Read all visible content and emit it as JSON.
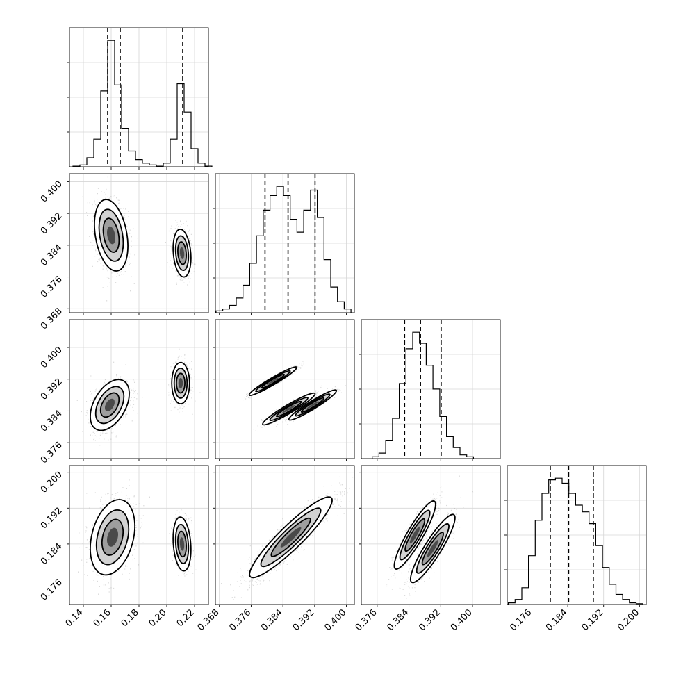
{
  "chart_data": {
    "type": "corner",
    "title": "",
    "grid": true,
    "parameters": [
      {
        "xlim": [
          0.13,
          0.23
        ],
        "ticks": [
          0.14,
          0.16,
          0.18,
          0.2,
          0.22
        ],
        "tick_labels": [
          "0.14",
          "0.16",
          "0.18",
          "0.20",
          "0.22"
        ]
      },
      {
        "xlim": [
          0.367,
          0.402
        ],
        "ticks": [
          0.368,
          0.376,
          0.384,
          0.392,
          0.4
        ],
        "tick_labels": [
          "0.368",
          "0.376",
          "0.384",
          "0.392",
          "0.400"
        ]
      },
      {
        "xlim": [
          0.372,
          0.407
        ],
        "ticks": [
          0.376,
          0.384,
          0.392,
          0.4
        ],
        "tick_labels": [
          "0.376",
          "0.384",
          "0.392",
          "0.400"
        ]
      },
      {
        "xlim": [
          0.1705,
          0.2015
        ],
        "ticks": [
          0.176,
          0.184,
          0.192,
          0.2
        ],
        "tick_labels": [
          "0.176",
          "0.184",
          "0.192",
          "0.200"
        ]
      }
    ],
    "histograms": [
      {
        "quantiles": [
          0.1575,
          0.1665,
          0.2115
        ],
        "peak": 21,
        "bins": [
          {
            "x": 0.135,
            "c": 0.1
          },
          {
            "x": 0.14,
            "c": 0.3
          },
          {
            "x": 0.145,
            "c": 1.5
          },
          {
            "x": 0.15,
            "c": 4.6
          },
          {
            "x": 0.155,
            "c": 12.6
          },
          {
            "x": 0.16,
            "c": 21.0
          },
          {
            "x": 0.165,
            "c": 13.6
          },
          {
            "x": 0.17,
            "c": 6.4
          },
          {
            "x": 0.175,
            "c": 2.6
          },
          {
            "x": 0.18,
            "c": 1.2
          },
          {
            "x": 0.185,
            "c": 0.6
          },
          {
            "x": 0.19,
            "c": 0.3
          },
          {
            "x": 0.195,
            "c": 0.1
          },
          {
            "x": 0.2,
            "c": 0.6
          },
          {
            "x": 0.205,
            "c": 4.6
          },
          {
            "x": 0.21,
            "c": 13.8
          },
          {
            "x": 0.215,
            "c": 9.1
          },
          {
            "x": 0.22,
            "c": 3.0
          },
          {
            "x": 0.225,
            "c": 0.6
          },
          {
            "x": 0.23,
            "c": 0.1
          }
        ]
      },
      {
        "quantiles": [
          0.3795,
          0.3853,
          0.3921
        ],
        "peak": 6.9,
        "bins": [
          {
            "x": 0.368,
            "c": 0.1
          },
          {
            "x": 0.3697,
            "c": 0.2
          },
          {
            "x": 0.3714,
            "c": 0.4
          },
          {
            "x": 0.3731,
            "c": 0.8
          },
          {
            "x": 0.3748,
            "c": 1.5
          },
          {
            "x": 0.3765,
            "c": 2.7
          },
          {
            "x": 0.3782,
            "c": 4.2
          },
          {
            "x": 0.3799,
            "c": 5.6
          },
          {
            "x": 0.3816,
            "c": 6.4
          },
          {
            "x": 0.3833,
            "c": 6.9
          },
          {
            "x": 0.385,
            "c": 6.4
          },
          {
            "x": 0.3867,
            "c": 5.1
          },
          {
            "x": 0.3884,
            "c": 4.4
          },
          {
            "x": 0.3901,
            "c": 5.6
          },
          {
            "x": 0.3918,
            "c": 6.7
          },
          {
            "x": 0.3935,
            "c": 5.2
          },
          {
            "x": 0.3952,
            "c": 2.9
          },
          {
            "x": 0.3969,
            "c": 1.4
          },
          {
            "x": 0.3986,
            "c": 0.6
          },
          {
            "x": 0.4003,
            "c": 0.2
          }
        ]
      },
      {
        "quantiles": [
          0.3829,
          0.3869,
          0.3921
        ],
        "peak": 6.9,
        "bins": [
          {
            "x": 0.3756,
            "c": 0.1
          },
          {
            "x": 0.3773,
            "c": 0.3
          },
          {
            "x": 0.379,
            "c": 1.0
          },
          {
            "x": 0.3807,
            "c": 2.2
          },
          {
            "x": 0.3824,
            "c": 4.1
          },
          {
            "x": 0.3841,
            "c": 6.0
          },
          {
            "x": 0.3858,
            "c": 6.9
          },
          {
            "x": 0.3875,
            "c": 6.3
          },
          {
            "x": 0.3892,
            "c": 5.1
          },
          {
            "x": 0.3909,
            "c": 3.8
          },
          {
            "x": 0.3926,
            "c": 2.3
          },
          {
            "x": 0.3943,
            "c": 1.2
          },
          {
            "x": 0.396,
            "c": 0.6
          },
          {
            "x": 0.3977,
            "c": 0.2
          },
          {
            "x": 0.3994,
            "c": 0.1
          }
        ]
      },
      {
        "quantiles": [
          0.1801,
          0.1842,
          0.1897
        ],
        "peak": 7.5,
        "bins": [
          {
            "x": 0.1715,
            "c": 0.1
          },
          {
            "x": 0.173,
            "c": 0.3
          },
          {
            "x": 0.1745,
            "c": 1.0
          },
          {
            "x": 0.176,
            "c": 2.9
          },
          {
            "x": 0.1775,
            "c": 5.0
          },
          {
            "x": 0.179,
            "c": 6.6
          },
          {
            "x": 0.1805,
            "c": 7.4
          },
          {
            "x": 0.182,
            "c": 7.5
          },
          {
            "x": 0.1835,
            "c": 7.2
          },
          {
            "x": 0.185,
            "c": 6.6
          },
          {
            "x": 0.1865,
            "c": 5.9
          },
          {
            "x": 0.188,
            "c": 5.5
          },
          {
            "x": 0.1895,
            "c": 4.8
          },
          {
            "x": 0.191,
            "c": 3.5
          },
          {
            "x": 0.1925,
            "c": 2.2
          },
          {
            "x": 0.194,
            "c": 1.2
          },
          {
            "x": 0.1955,
            "c": 0.6
          },
          {
            "x": 0.197,
            "c": 0.3
          },
          {
            "x": 0.1985,
            "c": 0.1
          },
          {
            "x": 0.2,
            "c": 0.05
          }
        ]
      }
    ],
    "joint_modes": [
      {
        "row": 1,
        "col": 0,
        "modes": [
          {
            "mx": 0.16,
            "my": 0.3865,
            "sx": 0.006,
            "sy": 0.0045,
            "rho": -0.3,
            "w": 0.62
          },
          {
            "mx": 0.211,
            "my": 0.382,
            "sx": 0.0032,
            "sy": 0.003,
            "rho": -0.2,
            "w": 0.38
          }
        ]
      },
      {
        "row": 2,
        "col": 0,
        "modes": [
          {
            "mx": 0.159,
            "my": 0.3855,
            "sx": 0.007,
            "sy": 0.0032,
            "rho": 0.45,
            "w": 0.62
          },
          {
            "mx": 0.21,
            "my": 0.391,
            "sx": 0.0032,
            "sy": 0.0026,
            "rho": 0.0,
            "w": 0.38
          }
        ]
      },
      {
        "row": 2,
        "col": 1,
        "modes": [
          {
            "mx": 0.3815,
            "my": 0.3915,
            "sx": 0.003,
            "sy": 0.0018,
            "rho": 0.96,
            "w": 0.35
          },
          {
            "mx": 0.3855,
            "my": 0.3845,
            "sx": 0.0033,
            "sy": 0.002,
            "rho": 0.95,
            "w": 0.35
          },
          {
            "mx": 0.3915,
            "my": 0.3855,
            "sx": 0.003,
            "sy": 0.0019,
            "rho": 0.95,
            "w": 0.3
          }
        ]
      },
      {
        "row": 3,
        "col": 0,
        "modes": [
          {
            "mx": 0.161,
            "my": 0.1855,
            "sx": 0.008,
            "sy": 0.0042,
            "rho": 0.3,
            "w": 0.62
          },
          {
            "mx": 0.211,
            "my": 0.184,
            "sx": 0.0032,
            "sy": 0.003,
            "rho": -0.2,
            "w": 0.38
          }
        ]
      },
      {
        "row": 3,
        "col": 1,
        "modes": [
          {
            "mx": 0.386,
            "my": 0.1855,
            "sx": 0.0052,
            "sy": 0.0045,
            "rho": 0.92,
            "w": 1.0
          }
        ]
      },
      {
        "row": 3,
        "col": 2,
        "modes": [
          {
            "mx": 0.3855,
            "my": 0.186,
            "sx": 0.0026,
            "sy": 0.0038,
            "rho": 0.9,
            "w": 0.55
          },
          {
            "mx": 0.39,
            "my": 0.183,
            "sx": 0.0028,
            "sy": 0.0038,
            "rho": 0.9,
            "w": 0.45
          }
        ]
      }
    ]
  }
}
